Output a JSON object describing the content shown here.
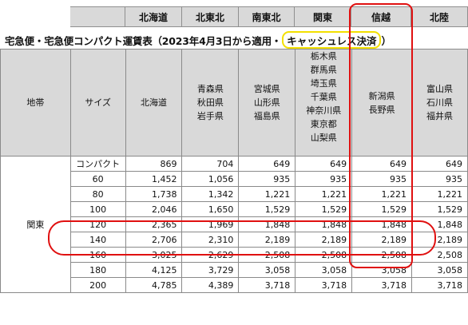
{
  "top_header": {
    "columns": [
      "北海道",
      "北東北",
      "南東北",
      "関東",
      "信越",
      "北陸"
    ]
  },
  "title": {
    "prefix": "宅急便・宅急便コンパクト運賃表（2023年4月3日から適用・",
    "highlight": "キャッシュレス決済",
    "suffix": "）"
  },
  "table": {
    "col_headers": {
      "zone": "地帯",
      "size": "サイズ",
      "destinations": [
        [
          "北海道"
        ],
        [
          "青森県",
          "秋田県",
          "岩手県"
        ],
        [
          "宮城県",
          "山形県",
          "福島県"
        ],
        [
          "栃木県",
          "群馬県",
          "埼玉県",
          "千葉県",
          "神奈川県",
          "東京都",
          "山梨県"
        ],
        [
          "新潟県",
          "長野県"
        ],
        [
          "富山県",
          "石川県",
          "福井県"
        ]
      ]
    },
    "origin_region": "関東",
    "rows": [
      {
        "size": "コンパクト",
        "values": [
          "869",
          "704",
          "649",
          "649",
          "649",
          "649"
        ]
      },
      {
        "size": "60",
        "values": [
          "1,452",
          "1,056",
          "935",
          "935",
          "935",
          "935"
        ]
      },
      {
        "size": "80",
        "values": [
          "1,738",
          "1,342",
          "1,221",
          "1,221",
          "1,221",
          "1,221"
        ]
      },
      {
        "size": "100",
        "values": [
          "2,046",
          "1,650",
          "1,529",
          "1,529",
          "1,529",
          "1,529"
        ]
      },
      {
        "size": "120",
        "values": [
          "2,365",
          "1,969",
          "1,848",
          "1,848",
          "1,848",
          "1,848"
        ]
      },
      {
        "size": "140",
        "values": [
          "2,706",
          "2,310",
          "2,189",
          "2,189",
          "2,189",
          "2,189"
        ]
      },
      {
        "size": "160",
        "values": [
          "3,025",
          "2,629",
          "2,508",
          "2,508",
          "2,508",
          "2,508"
        ]
      },
      {
        "size": "180",
        "values": [
          "4,125",
          "3,729",
          "3,058",
          "3,058",
          "3,058",
          "3,058"
        ]
      },
      {
        "size": "200",
        "values": [
          "4,785",
          "4,389",
          "3,718",
          "3,718",
          "3,718",
          "3,718"
        ]
      }
    ]
  },
  "colors": {
    "header_bg": "#d9d9d9",
    "highlight_ring": "#e01010",
    "title_highlight": "#f3e000"
  }
}
